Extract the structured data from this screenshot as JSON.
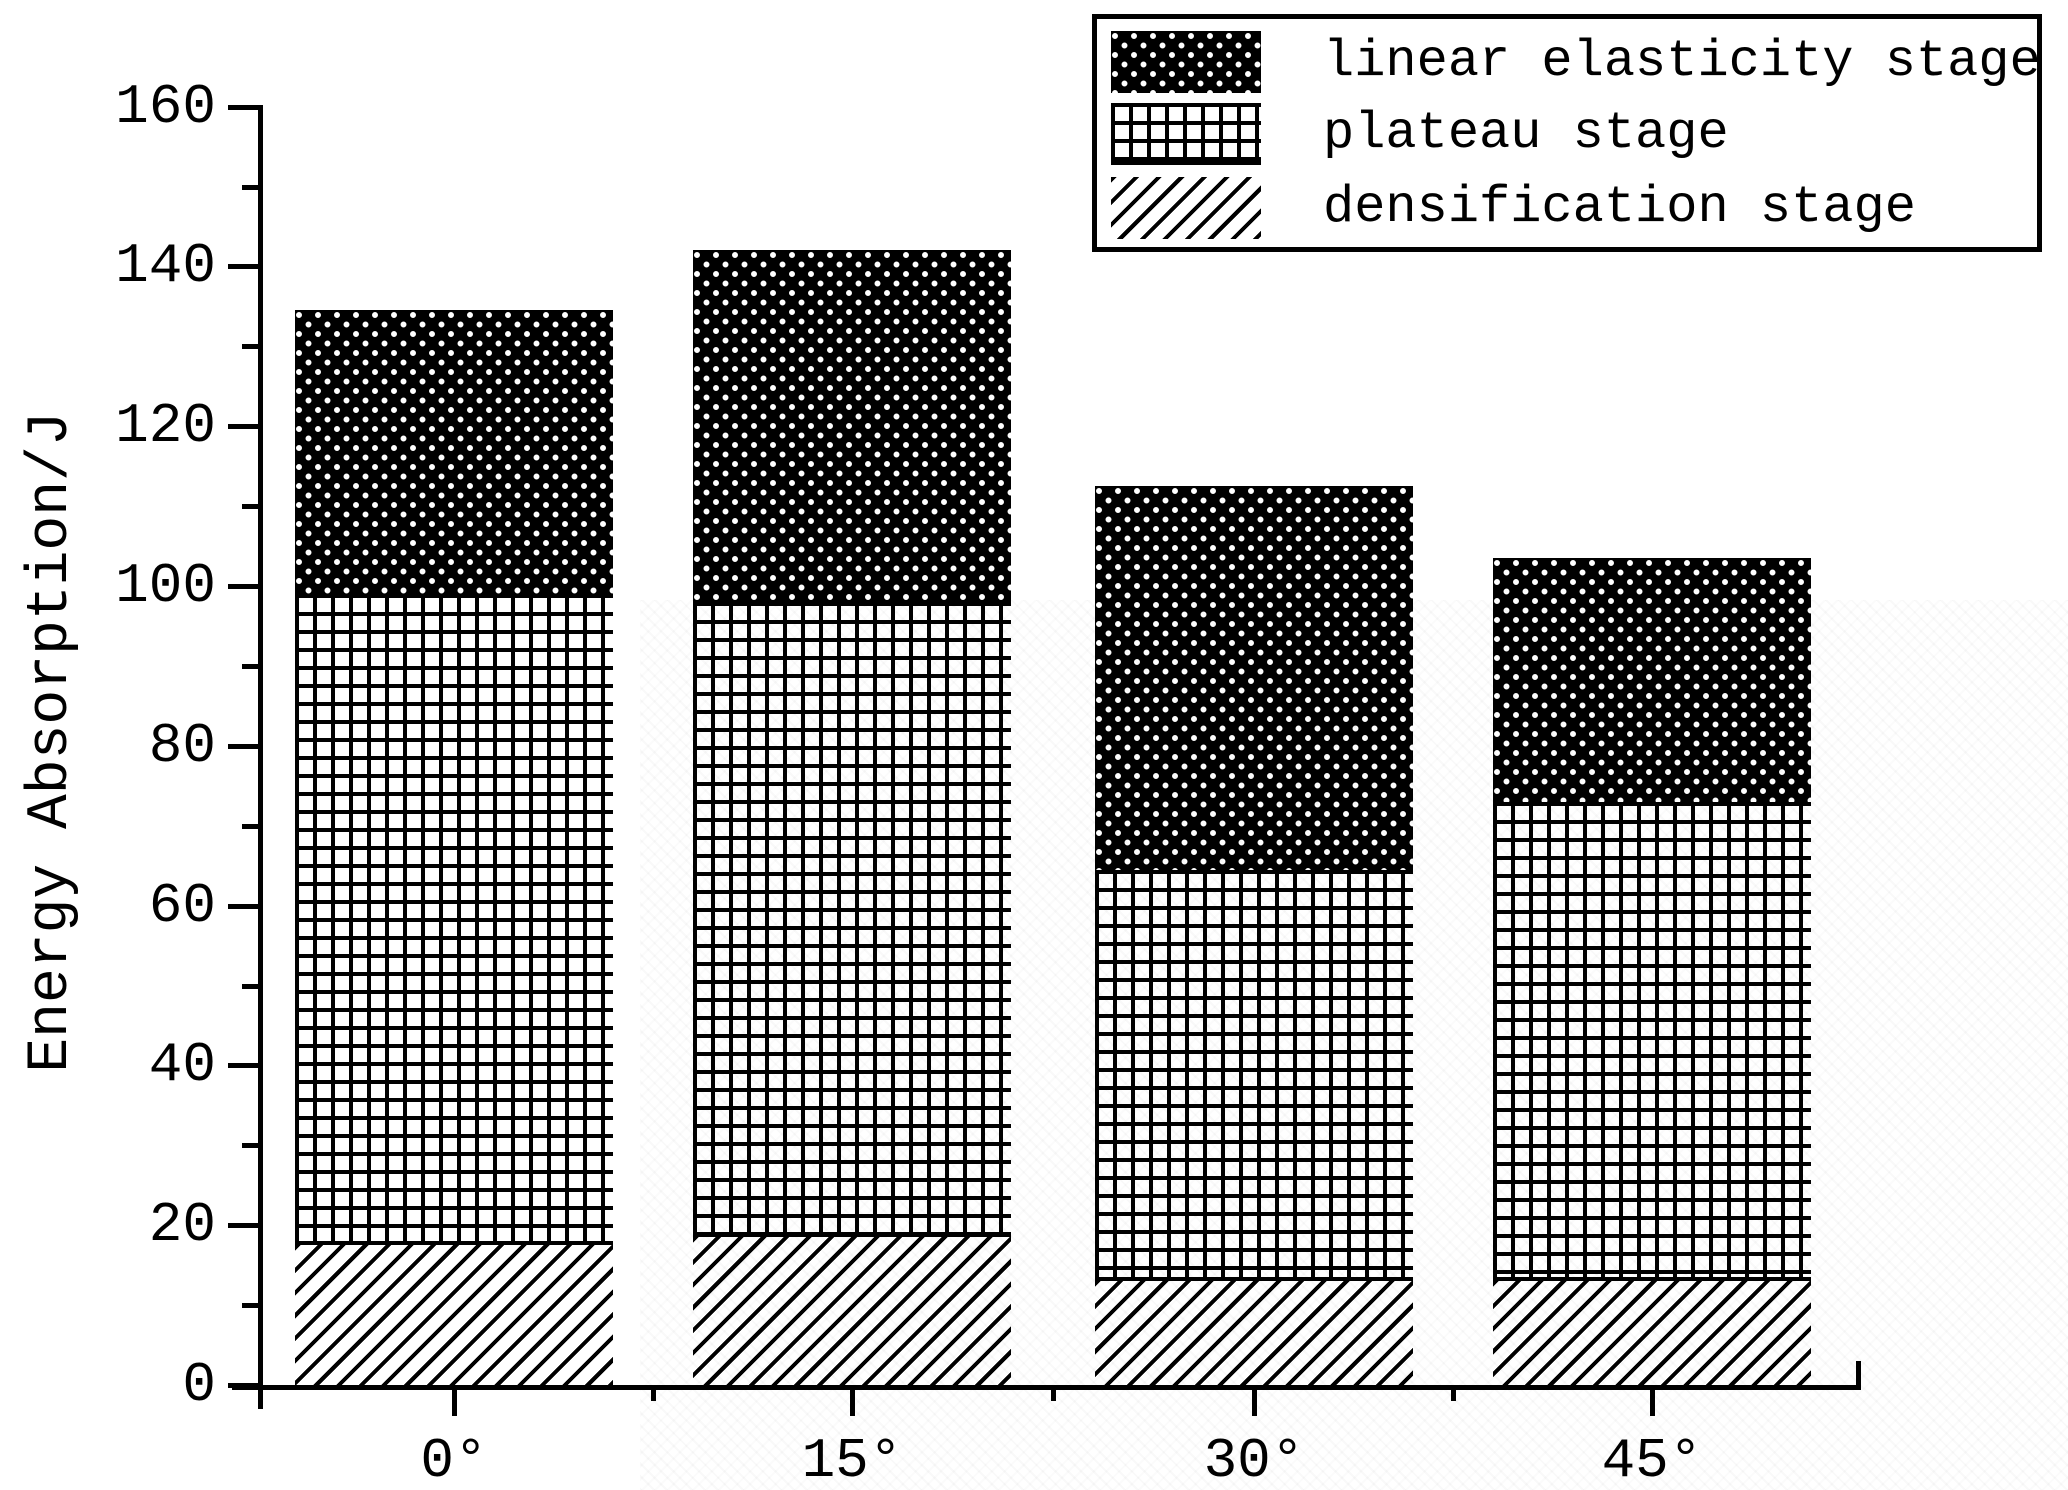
{
  "chart_data": {
    "type": "bar",
    "subtype": "stacked-vertical",
    "title": "",
    "xlabel": "",
    "ylabel": "Energy Absorption/J",
    "categories": [
      "0°",
      "15°",
      "30°",
      "45°"
    ],
    "series": [
      {
        "name": "densification stage",
        "pattern": "diagonal-hatch",
        "values": [
          17.5,
          18.5,
          13,
          13
        ]
      },
      {
        "name": "plateau stage",
        "pattern": "grid-crosshatch",
        "values": [
          81.5,
          79.5,
          51.5,
          60
        ]
      },
      {
        "name": "linear elasticity stage",
        "pattern": "black-white-dots",
        "values": [
          35.5,
          44,
          48,
          30.5
        ]
      }
    ],
    "stack_totals": [
      134.5,
      142,
      112.5,
      103.5
    ],
    "cumulative_boundaries": {
      "0deg": [
        17.5,
        99,
        134.5
      ],
      "15deg": [
        18.5,
        98,
        142
      ],
      "30deg": [
        13,
        64.5,
        112.5
      ],
      "45deg": [
        13,
        73,
        103.5
      ]
    },
    "ylim": [
      0,
      160
    ],
    "ytick_major_step": 20,
    "ytick_minor_step": 10,
    "ytick_labels": [
      "0",
      "20",
      "40",
      "60",
      "80",
      "100",
      "120",
      "140",
      "160"
    ],
    "grid": false,
    "legend_position": "top-right",
    "legend_order_top_to_bottom": [
      "linear elasticity stage",
      "plateau stage",
      "densification stage"
    ]
  },
  "colors": {
    "ink": "#000000",
    "background": "#ffffff",
    "watermark_tint": "#ebebeb"
  }
}
